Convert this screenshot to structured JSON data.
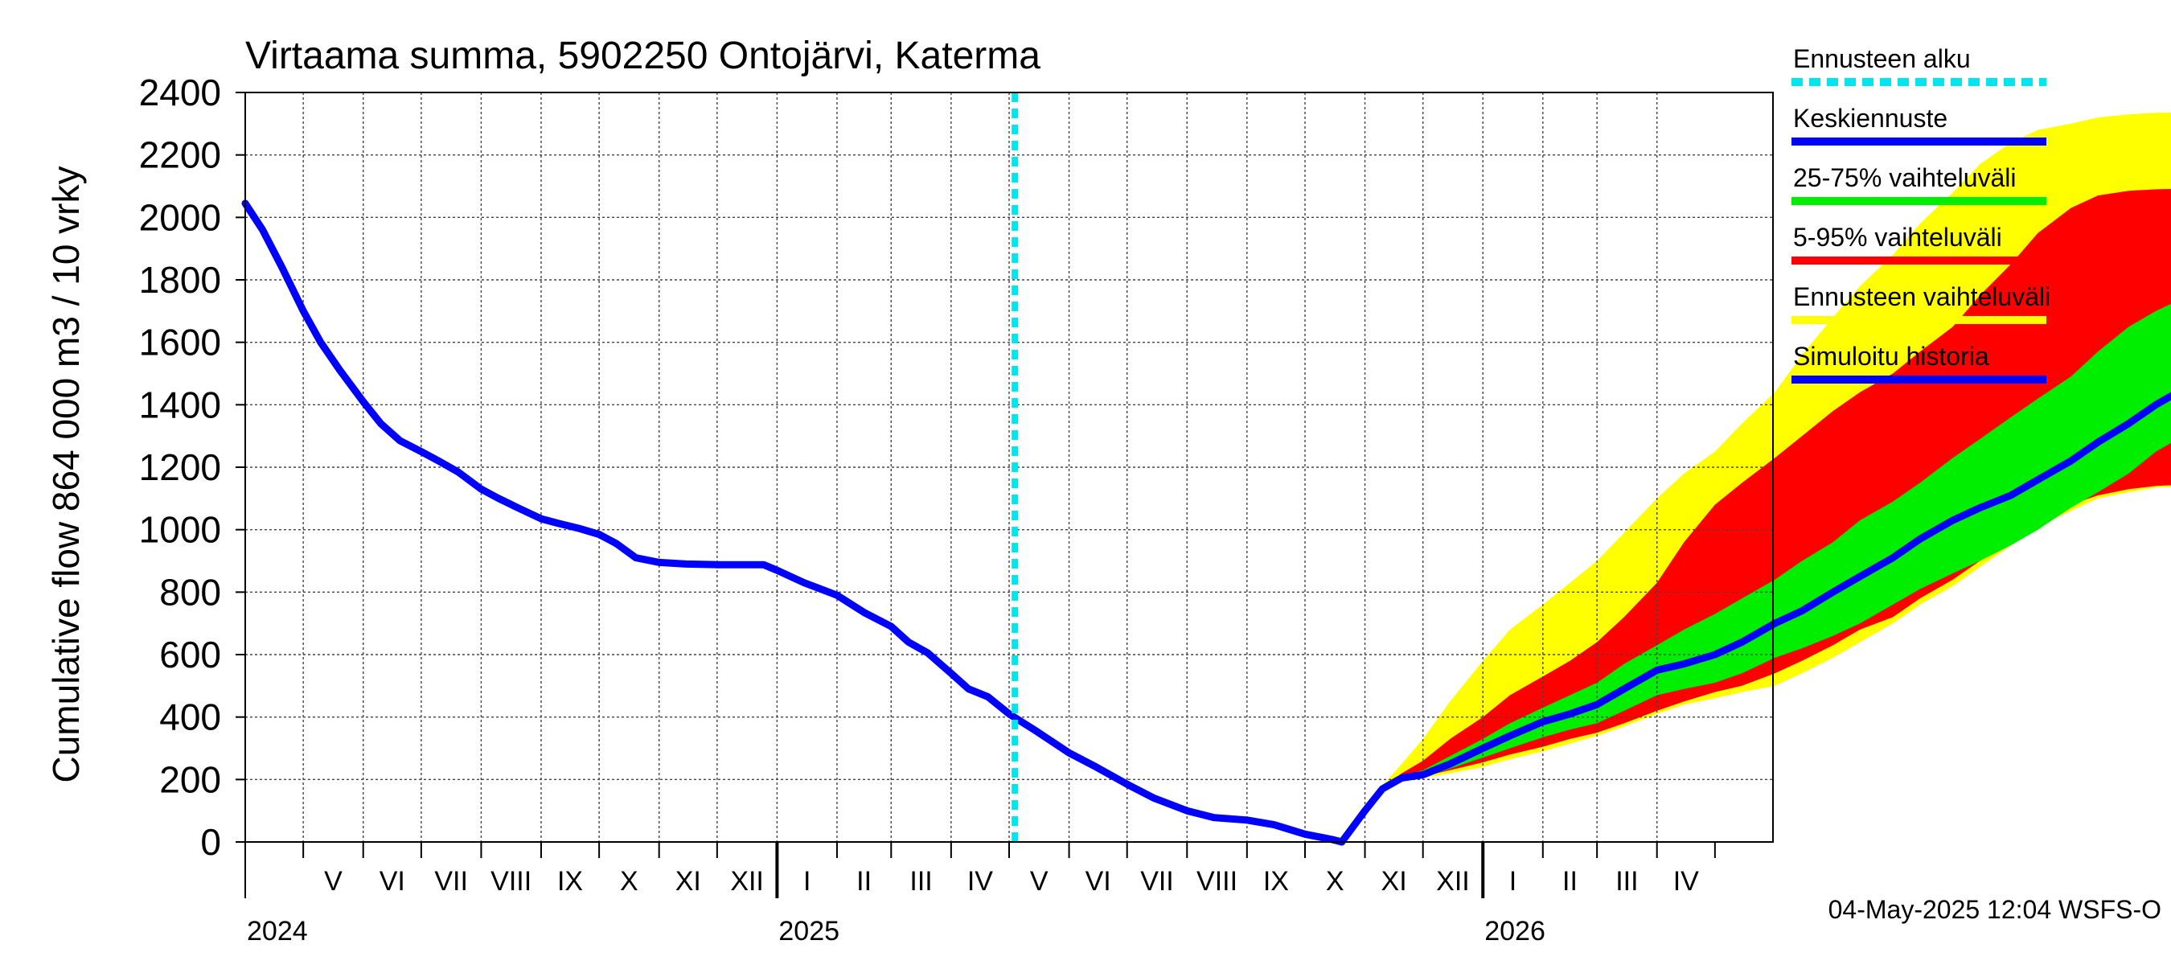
{
  "chart_data": {
    "type": "area",
    "title": "Virtaama summa, 5902250 Ontojärvi, Katerma",
    "ylabel": "Cumulative flow    864 000 m3 / 10 vrky",
    "ylim": [
      0,
      2400
    ],
    "xlim": [
      "2024-04-01",
      "2026-05-31"
    ],
    "yticks": [
      0,
      200,
      400,
      600,
      800,
      1000,
      1200,
      1400,
      1600,
      1800,
      2000,
      2200,
      2400
    ],
    "months": [
      {
        "label": "V",
        "start": "2024-05-01",
        "end": "2024-05-31"
      },
      {
        "label": "VI",
        "start": "2024-06-01",
        "end": "2024-06-30"
      },
      {
        "label": "VII",
        "start": "2024-07-01",
        "end": "2024-07-31"
      },
      {
        "label": "VIII",
        "start": "2024-08-01",
        "end": "2024-08-31"
      },
      {
        "label": "IX",
        "start": "2024-09-01",
        "end": "2024-09-30"
      },
      {
        "label": "X",
        "start": "2024-10-01",
        "end": "2024-10-31"
      },
      {
        "label": "XI",
        "start": "2024-11-01",
        "end": "2024-11-30"
      },
      {
        "label": "XII",
        "start": "2024-12-01",
        "end": "2024-12-31"
      },
      {
        "label": "I",
        "start": "2025-01-01",
        "end": "2025-01-31"
      },
      {
        "label": "II",
        "start": "2025-02-01",
        "end": "2025-02-28"
      },
      {
        "label": "III",
        "start": "2025-03-01",
        "end": "2025-03-31"
      },
      {
        "label": "IV",
        "start": "2025-04-01",
        "end": "2025-04-30"
      },
      {
        "label": "V",
        "start": "2025-05-01",
        "end": "2025-05-31"
      },
      {
        "label": "VI",
        "start": "2025-06-01",
        "end": "2025-06-30"
      },
      {
        "label": "VII",
        "start": "2025-07-01",
        "end": "2025-07-31"
      },
      {
        "label": "VIII",
        "start": "2025-08-01",
        "end": "2025-08-31"
      },
      {
        "label": "IX",
        "start": "2025-09-01",
        "end": "2025-09-30"
      },
      {
        "label": "X",
        "start": "2025-10-01",
        "end": "2025-10-31"
      },
      {
        "label": "XI",
        "start": "2025-11-01",
        "end": "2025-11-30"
      },
      {
        "label": "XII",
        "start": "2025-12-01",
        "end": "2025-12-31"
      },
      {
        "label": "I",
        "start": "2026-01-01",
        "end": "2026-01-31"
      },
      {
        "label": "II",
        "start": "2026-02-01",
        "end": "2026-02-28"
      },
      {
        "label": "III",
        "start": "2026-03-01",
        "end": "2026-03-31"
      },
      {
        "label": "IV",
        "start": "2026-04-01",
        "end": "2026-04-30"
      }
    ],
    "years": [
      {
        "label": "2024",
        "date": "2024-04-01"
      },
      {
        "label": "2025",
        "date": "2025-01-01"
      },
      {
        "label": "2026",
        "date": "2026-01-01"
      }
    ],
    "forecast_start": "2025-05-04",
    "legend": [
      {
        "label": "Ennusteen alku",
        "color": "#00e5ee",
        "dashed": true
      },
      {
        "label": "Keskiennuste",
        "color": "#0000ff",
        "dashed": false
      },
      {
        "label": "25-75% vaihteluväli",
        "color": "#00ee00",
        "dashed": false
      },
      {
        "label": "5-95% vaihteluväli",
        "color": "#ff0000",
        "dashed": false
      },
      {
        "label": "Ennusteen vaihteluväli",
        "color": "#ffff00",
        "dashed": false
      },
      {
        "label": "Simuloitu historia",
        "color": "#0000ff",
        "dashed": false
      }
    ],
    "footer": "04-May-2025 12:04 WSFS-O",
    "history": {
      "name": "Simuloitu historia",
      "points": [
        [
          "2024-04-01",
          2045
        ],
        [
          "2024-04-10",
          1960
        ],
        [
          "2024-04-20",
          1840
        ],
        [
          "2024-05-01",
          1700
        ],
        [
          "2024-05-10",
          1600
        ],
        [
          "2024-05-20",
          1510
        ],
        [
          "2024-06-01",
          1410
        ],
        [
          "2024-06-10",
          1340
        ],
        [
          "2024-06-20",
          1285
        ],
        [
          "2024-07-01",
          1250
        ],
        [
          "2024-07-10",
          1220
        ],
        [
          "2024-07-20",
          1185
        ],
        [
          "2024-08-01",
          1130
        ],
        [
          "2024-08-10",
          1100
        ],
        [
          "2024-08-20",
          1070
        ],
        [
          "2024-09-01",
          1035
        ],
        [
          "2024-09-10",
          1020
        ],
        [
          "2024-09-20",
          1005
        ],
        [
          "2024-10-01",
          985
        ],
        [
          "2024-10-10",
          955
        ],
        [
          "2024-10-20",
          910
        ],
        [
          "2024-11-01",
          895
        ],
        [
          "2024-11-15",
          890
        ],
        [
          "2024-12-01",
          888
        ],
        [
          "2024-12-15",
          888
        ],
        [
          "2024-12-25",
          888
        ],
        [
          "2025-01-01",
          870
        ],
        [
          "2025-01-15",
          830
        ],
        [
          "2025-02-01",
          790
        ],
        [
          "2025-02-15",
          735
        ],
        [
          "2025-03-01",
          690
        ],
        [
          "2025-03-10",
          640
        ],
        [
          "2025-03-20",
          605
        ],
        [
          "2025-04-01",
          540
        ],
        [
          "2025-04-10",
          490
        ],
        [
          "2025-04-20",
          465
        ],
        [
          "2025-05-01",
          410
        ],
        [
          "2025-05-15",
          355
        ],
        [
          "2025-06-01",
          285
        ],
        [
          "2025-06-15",
          240
        ],
        [
          "2025-07-01",
          185
        ],
        [
          "2025-07-15",
          140
        ],
        [
          "2025-08-01",
          100
        ],
        [
          "2025-08-15",
          78
        ],
        [
          "2025-09-01",
          70
        ],
        [
          "2025-09-15",
          55
        ],
        [
          "2025-10-01",
          25
        ],
        [
          "2025-10-15",
          8
        ],
        [
          "2025-10-20",
          0
        ]
      ]
    },
    "forecast": {
      "dates": [
        "2025-10-20",
        "2025-11-01",
        "2025-11-10",
        "2025-11-20",
        "2025-12-01",
        "2025-12-15",
        "2026-01-01",
        "2026-01-15",
        "2026-02-01",
        "2026-02-15",
        "2026-03-01",
        "2026-03-15",
        "2026-04-01",
        "2026-04-15",
        "2026-05-01",
        "2026-05-15",
        "2026-06-01",
        "2026-06-15",
        "2026-07-01",
        "2026-07-15",
        "2026-08-01",
        "2026-08-15",
        "2026-09-01",
        "2026-09-15",
        "2026-10-01",
        "2026-10-15",
        "2026-11-01",
        "2026-11-15",
        "2026-12-01",
        "2026-12-15",
        "2027-01-01",
        "2027-01-15",
        "2027-02-01",
        "2027-02-15",
        "2027-03-01",
        "2027-03-15",
        "2027-04-01",
        "2027-04-15",
        "2027-05-01",
        "2027-05-15"
      ],
      "median": [
        0,
        100,
        170,
        205,
        215,
        250,
        300,
        340,
        385,
        410,
        440,
        490,
        550,
        570,
        600,
        640,
        700,
        740,
        800,
        850,
        910,
        970,
        1030,
        1070,
        1110,
        1160,
        1220,
        1280,
        1340,
        1400,
        1460,
        1520,
        1560,
        1580,
        1600,
        1610,
        1612,
        1613,
        1614,
        1615
      ],
      "p25": [
        0,
        100,
        170,
        200,
        205,
        235,
        270,
        300,
        335,
        360,
        380,
        420,
        470,
        490,
        510,
        540,
        590,
        620,
        660,
        700,
        760,
        810,
        860,
        900,
        950,
        1000,
        1070,
        1120,
        1180,
        1250,
        1310,
        1360,
        1400,
        1420,
        1425,
        1430,
        1432,
        1433,
        1434,
        1435
      ],
      "p75": [
        0,
        100,
        170,
        210,
        230,
        275,
        330,
        380,
        430,
        470,
        510,
        570,
        630,
        680,
        730,
        780,
        840,
        900,
        960,
        1030,
        1090,
        1150,
        1230,
        1290,
        1360,
        1420,
        1490,
        1570,
        1650,
        1700,
        1750,
        1790,
        1810,
        1820,
        1825,
        1828,
        1829,
        1830,
        1830,
        1830
      ],
      "p5": [
        0,
        100,
        170,
        200,
        210,
        230,
        255,
        280,
        305,
        330,
        350,
        380,
        420,
        450,
        480,
        500,
        540,
        580,
        630,
        680,
        720,
        780,
        840,
        900,
        970,
        1030,
        1080,
        1110,
        1130,
        1140,
        1145,
        1148,
        1150,
        1150,
        1150,
        1150,
        1150,
        1150,
        1150,
        1150
      ],
      "p95": [
        0,
        100,
        170,
        220,
        260,
        330,
        400,
        470,
        530,
        580,
        640,
        720,
        830,
        960,
        1080,
        1150,
        1230,
        1300,
        1380,
        1440,
        1500,
        1570,
        1650,
        1750,
        1850,
        1950,
        2030,
        2070,
        2085,
        2090,
        2092,
        2093,
        2094,
        2095,
        2095,
        2095,
        2095,
        2095,
        2095,
        2095
      ],
      "min": [
        0,
        100,
        165,
        195,
        205,
        220,
        240,
        265,
        290,
        315,
        340,
        370,
        410,
        440,
        460,
        480,
        500,
        540,
        590,
        640,
        700,
        760,
        820,
        880,
        950,
        1010,
        1060,
        1100,
        1120,
        1135,
        1140,
        1145,
        1148,
        1150,
        1150,
        1150,
        1150,
        1150,
        1150,
        1150
      ],
      "max": [
        0,
        100,
        180,
        250,
        330,
        450,
        580,
        680,
        760,
        830,
        900,
        990,
        1100,
        1180,
        1250,
        1340,
        1440,
        1560,
        1680,
        1780,
        1880,
        1980,
        2080,
        2170,
        2240,
        2280,
        2300,
        2320,
        2330,
        2335,
        2337,
        2338,
        2339,
        2340,
        2340,
        2340,
        2340,
        2340,
        2340,
        2340
      ]
    }
  }
}
